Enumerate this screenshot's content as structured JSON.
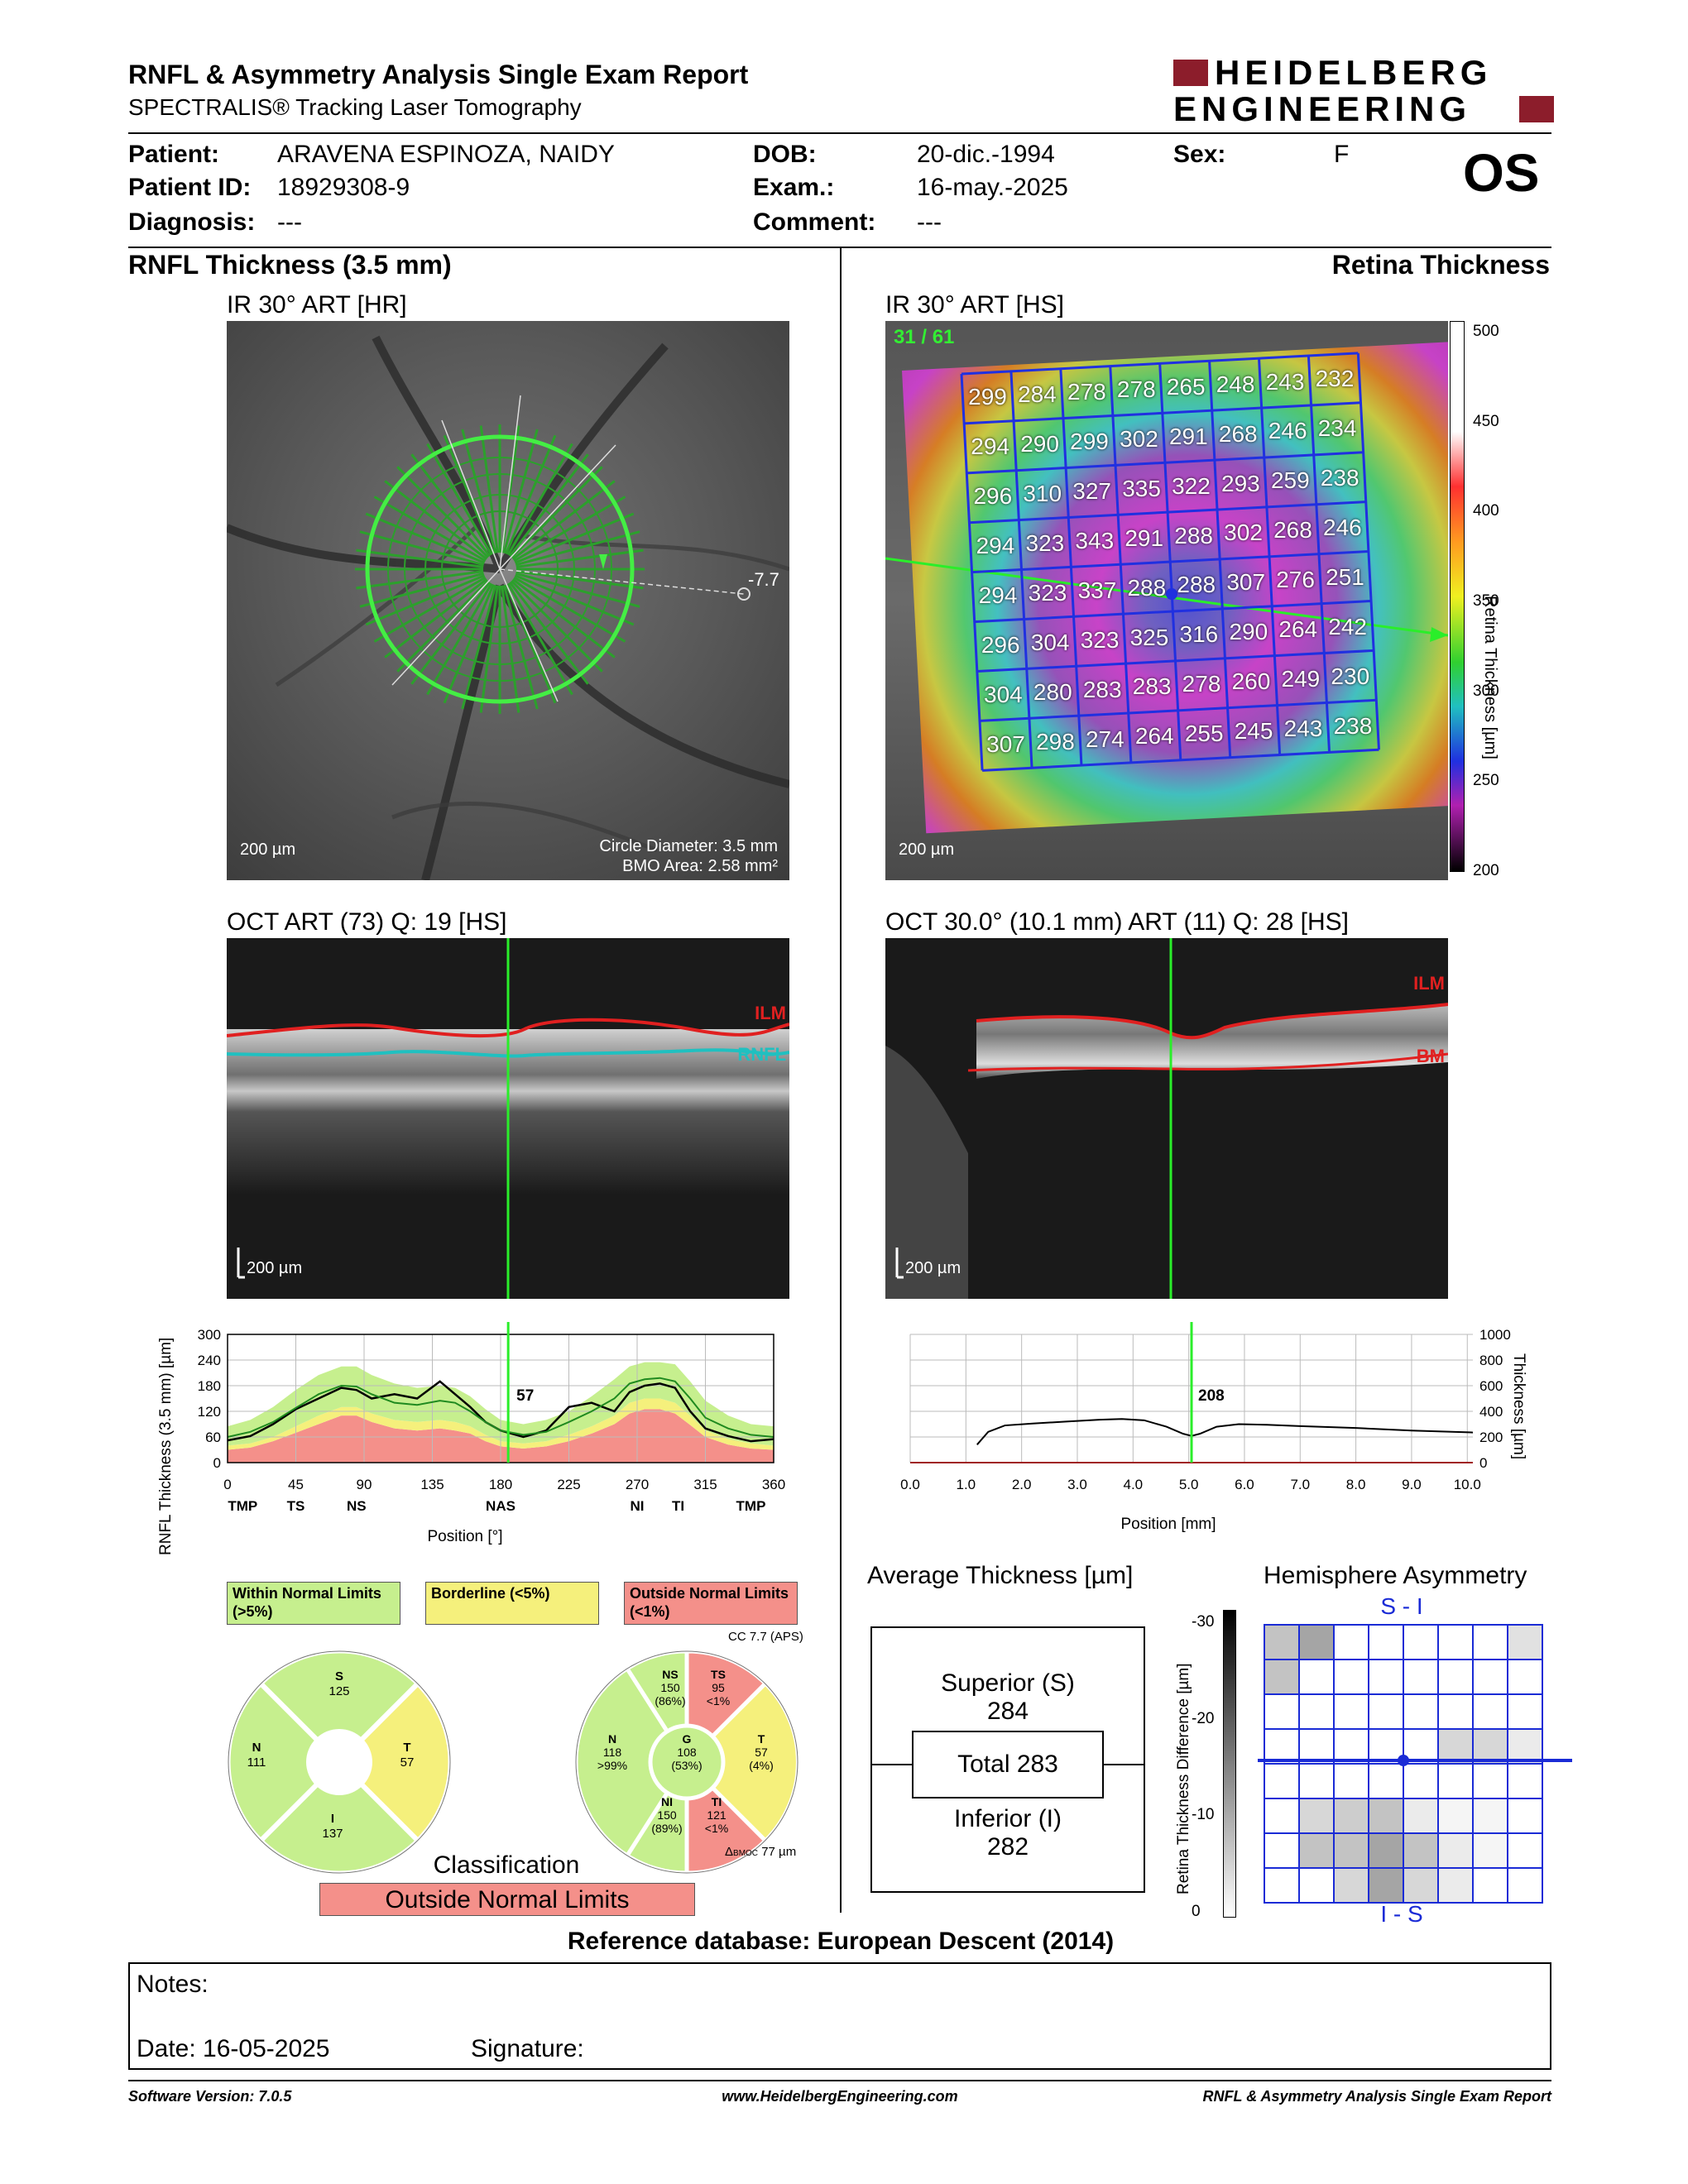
{
  "header": {
    "title": "RNFL & Asymmetry Analysis Single Exam Report",
    "subtitle": "SPECTRALIS® Tracking Laser Tomography",
    "logo_line1": "HEIDELBERG",
    "logo_line2": "ENGINEERING"
  },
  "patient": {
    "patient_label": "Patient:",
    "patient_value": "ARAVENA ESPINOZA, NAIDY",
    "id_label": "Patient ID:",
    "id_value": "18929308-9",
    "diag_label": "Diagnosis:",
    "diag_value": "---",
    "dob_label": "DOB:",
    "dob_value": "20-dic.-1994",
    "exam_label": "Exam.:",
    "exam_value": "16-may.-2025",
    "comment_label": "Comment:",
    "comment_value": "---",
    "sex_label": "Sex:",
    "sex_value": "F",
    "eye": "OS"
  },
  "left": {
    "section_title": "RNFL Thickness (3.5 mm)",
    "ir_title": "IR 30° ART [HR]",
    "ir_angle": "-7.7",
    "ir_scale": "200 µm",
    "circle_diameter": "Circle Diameter: 3.5 mm",
    "bmo_area": "BMO Area: 2.58 mm²",
    "oct_title": "OCT ART (73) Q: 19 [HS]",
    "oct_ilm": "ILM",
    "oct_rnfl": "RNFL",
    "oct_scale": "200 µm"
  },
  "right": {
    "section_title": "Retina Thickness",
    "ir_title": "IR 30° ART [HS]",
    "ir_count": "31 / 61",
    "ir_scale": "200 µm",
    "grid": [
      [
        "299",
        "284",
        "278",
        "278",
        "265",
        "248",
        "243",
        "232"
      ],
      [
        "294",
        "290",
        "299",
        "302",
        "291",
        "268",
        "246",
        "234"
      ],
      [
        "296",
        "310",
        "327",
        "335",
        "322",
        "293",
        "259",
        "238"
      ],
      [
        "294",
        "323",
        "343",
        "291",
        "288",
        "302",
        "268",
        "246"
      ],
      [
        "294",
        "323",
        "337",
        "288",
        "288",
        "307",
        "276",
        "251"
      ],
      [
        "296",
        "304",
        "323",
        "325",
        "316",
        "290",
        "264",
        "242"
      ],
      [
        "304",
        "280",
        "283",
        "283",
        "278",
        "260",
        "249",
        "230"
      ],
      [
        "307",
        "298",
        "274",
        "264",
        "255",
        "245",
        "243",
        "238"
      ]
    ],
    "colorbar_ticks": [
      "500",
      "450",
      "400",
      "350",
      "300",
      "250",
      "200"
    ],
    "colorbar_label": "Retina Thickness [µm]",
    "oct_title": "OCT 30.0° (10.1 mm) ART (11) Q: 28 [HS]",
    "oct_ilm": "ILM",
    "oct_bm": "BM",
    "oct_scale": "200 µm"
  },
  "rnfl_chart": {
    "ylabel": "RNFL Thickness (3.5 mm) [µm]",
    "xlabel": "Position [°]",
    "cursor_value": "57",
    "sectors": [
      "TMP",
      "TS",
      "NS",
      "NAS",
      "NI",
      "TI",
      "TMP"
    ]
  },
  "retina_chart": {
    "ylabel": "Thickness [µm]",
    "xlabel": "Position [mm]",
    "cursor_value": "208"
  },
  "chart_data": [
    {
      "type": "line",
      "title": "",
      "xlabel": "Position [°]",
      "ylabel": "RNFL Thickness (3.5 mm) [µm]",
      "xlim": [
        0,
        360
      ],
      "ylim": [
        0,
        300
      ],
      "xticks": [
        0,
        45,
        90,
        135,
        180,
        225,
        270,
        315,
        360
      ],
      "yticks": [
        0,
        60,
        120,
        180,
        240,
        300
      ],
      "grid": true,
      "x": [
        0,
        15,
        30,
        45,
        60,
        75,
        85,
        95,
        110,
        125,
        140,
        150,
        160,
        170,
        180,
        195,
        210,
        225,
        240,
        255,
        265,
        275,
        285,
        295,
        305,
        315,
        330,
        345,
        360
      ],
      "series": [
        {
          "values": [
            52,
            62,
            90,
            125,
            150,
            175,
            170,
            150,
            160,
            150,
            190,
            160,
            130,
            95,
            75,
            60,
            75,
            130,
            140,
            120,
            165,
            180,
            185,
            175,
            120,
            80,
            62,
            50,
            55
          ]
        },
        {
          "values": [
            60,
            72,
            95,
            128,
            160,
            180,
            178,
            160,
            140,
            135,
            145,
            140,
            120,
            95,
            75,
            65,
            72,
            95,
            120,
            150,
            185,
            195,
            198,
            190,
            150,
            105,
            80,
            65,
            60
          ]
        }
      ],
      "bands": {
        "outside_upper": [
          85,
          100,
          130,
          170,
          205,
          225,
          225,
          205,
          185,
          175,
          180,
          175,
          155,
          125,
          100,
          90,
          100,
          120,
          155,
          195,
          225,
          235,
          235,
          230,
          190,
          145,
          110,
          90,
          85
        ],
        "borderline_lower": [
          40,
          45,
          60,
          85,
          110,
          130,
          130,
          115,
          100,
          95,
          100,
          95,
          85,
          65,
          50,
          45,
          50,
          65,
          85,
          110,
          140,
          150,
          150,
          140,
          110,
          75,
          55,
          45,
          40
        ],
        "outside_lower": [
          30,
          35,
          50,
          70,
          90,
          110,
          110,
          95,
          80,
          75,
          80,
          75,
          68,
          50,
          38,
          33,
          38,
          50,
          68,
          90,
          115,
          125,
          125,
          115,
          88,
          60,
          42,
          33,
          30
        ]
      },
      "cursor_x": 185,
      "cursor_label": "57"
    },
    {
      "type": "line",
      "title": "",
      "xlabel": "Position [mm]",
      "ylabel": "Thickness [µm]",
      "xlim": [
        0,
        10.1
      ],
      "ylim": [
        0,
        1000
      ],
      "xticks": [
        0.0,
        1.0,
        2.0,
        3.0,
        4.0,
        5.0,
        6.0,
        7.0,
        8.0,
        9.0,
        10.0
      ],
      "yticks": [
        0,
        200,
        400,
        600,
        800,
        1000
      ],
      "grid": true,
      "series": [
        {
          "x": [
            1.2,
            1.4,
            1.7,
            2.2,
            2.8,
            3.4,
            3.8,
            4.2,
            4.6,
            4.9,
            5.05,
            5.2,
            5.5,
            5.9,
            6.4,
            7.0,
            8.0,
            9.0,
            10.1
          ],
          "values": [
            140,
            240,
            290,
            305,
            320,
            335,
            340,
            330,
            280,
            225,
            208,
            225,
            280,
            300,
            295,
            285,
            270,
            250,
            235
          ]
        }
      ],
      "cursor_x": 5.05,
      "cursor_label": "208"
    }
  ],
  "legend": {
    "within": "Within Normal Limits (>5%)",
    "borderline": "Borderline (<5%)",
    "outside": "Outside Normal Limits (<1%)"
  },
  "sectors4": {
    "S": {
      "label": "S",
      "value": "125"
    },
    "N": {
      "label": "N",
      "value": "111"
    },
    "T": {
      "label": "T",
      "value": "57"
    },
    "I": {
      "label": "I",
      "value": "137"
    }
  },
  "sectors6": {
    "cc": "CC 7.7 (APS)",
    "NS": {
      "label": "NS",
      "value": "150",
      "pct": "(86%)"
    },
    "TS": {
      "label": "TS",
      "value": "95",
      "pct": "<1%"
    },
    "N": {
      "label": "N",
      "value": "118",
      "pct": ">99%"
    },
    "G": {
      "label": "G",
      "value": "108",
      "pct": "(53%)"
    },
    "T": {
      "label": "T",
      "value": "57",
      "pct": "(4%)"
    },
    "NI": {
      "label": "NI",
      "value": "150",
      "pct": "(89%)"
    },
    "TI": {
      "label": "TI",
      "value": "121",
      "pct": "<1%"
    },
    "bmoc": "77 µm",
    "bmoc_prefix": "BMOC"
  },
  "classification": {
    "title": "Classification",
    "value": "Outside Normal Limits"
  },
  "average": {
    "title": "Average Thickness [µm]",
    "superior_label": "Superior (S)",
    "superior_value": "284",
    "total": "Total 283",
    "inferior_label": "Inferior (I)",
    "inferior_value": "282"
  },
  "asymmetry": {
    "title": "Hemisphere Asymmetry",
    "top": "S - I",
    "bottom": "I - S",
    "ylabel": "Retina Thickness Difference [µm]",
    "ticks": [
      "-30",
      "-20",
      "-10",
      "0"
    ],
    "cells": [
      [
        0.3,
        0.45,
        0,
        0,
        0,
        0,
        0,
        0.15
      ],
      [
        0.3,
        0,
        0,
        0,
        0,
        0,
        0,
        0
      ],
      [
        0,
        0,
        0,
        0,
        0,
        0,
        0,
        0
      ],
      [
        0,
        0,
        0,
        0,
        0,
        0.2,
        0.2,
        0.1
      ],
      [
        0,
        0,
        0,
        0,
        0,
        0,
        0,
        0
      ],
      [
        0,
        0.2,
        0.25,
        0.3,
        0.1,
        0.05,
        0.05,
        0
      ],
      [
        0,
        0.3,
        0.3,
        0.45,
        0.3,
        0.1,
        0.05,
        0
      ],
      [
        0,
        0,
        0.2,
        0.45,
        0.2,
        0.1,
        0,
        0
      ]
    ]
  },
  "reference": "Reference database: European Descent (2014)",
  "notes": {
    "notes_label": "Notes:",
    "date_label": "Date: 16-05-2025",
    "signature_label": "Signature:"
  },
  "footer": {
    "version": "Software Version: 7.0.5",
    "url": "www.HeidelbergEngineering.com",
    "report": "RNFL & Asymmetry Analysis Single Exam Report"
  },
  "colors": {
    "within": "#c6ef8e",
    "borderline": "#f5f07c",
    "outside": "#f4908a",
    "grid_blue": "#1a2bd6",
    "green_line": "#33dd33"
  }
}
